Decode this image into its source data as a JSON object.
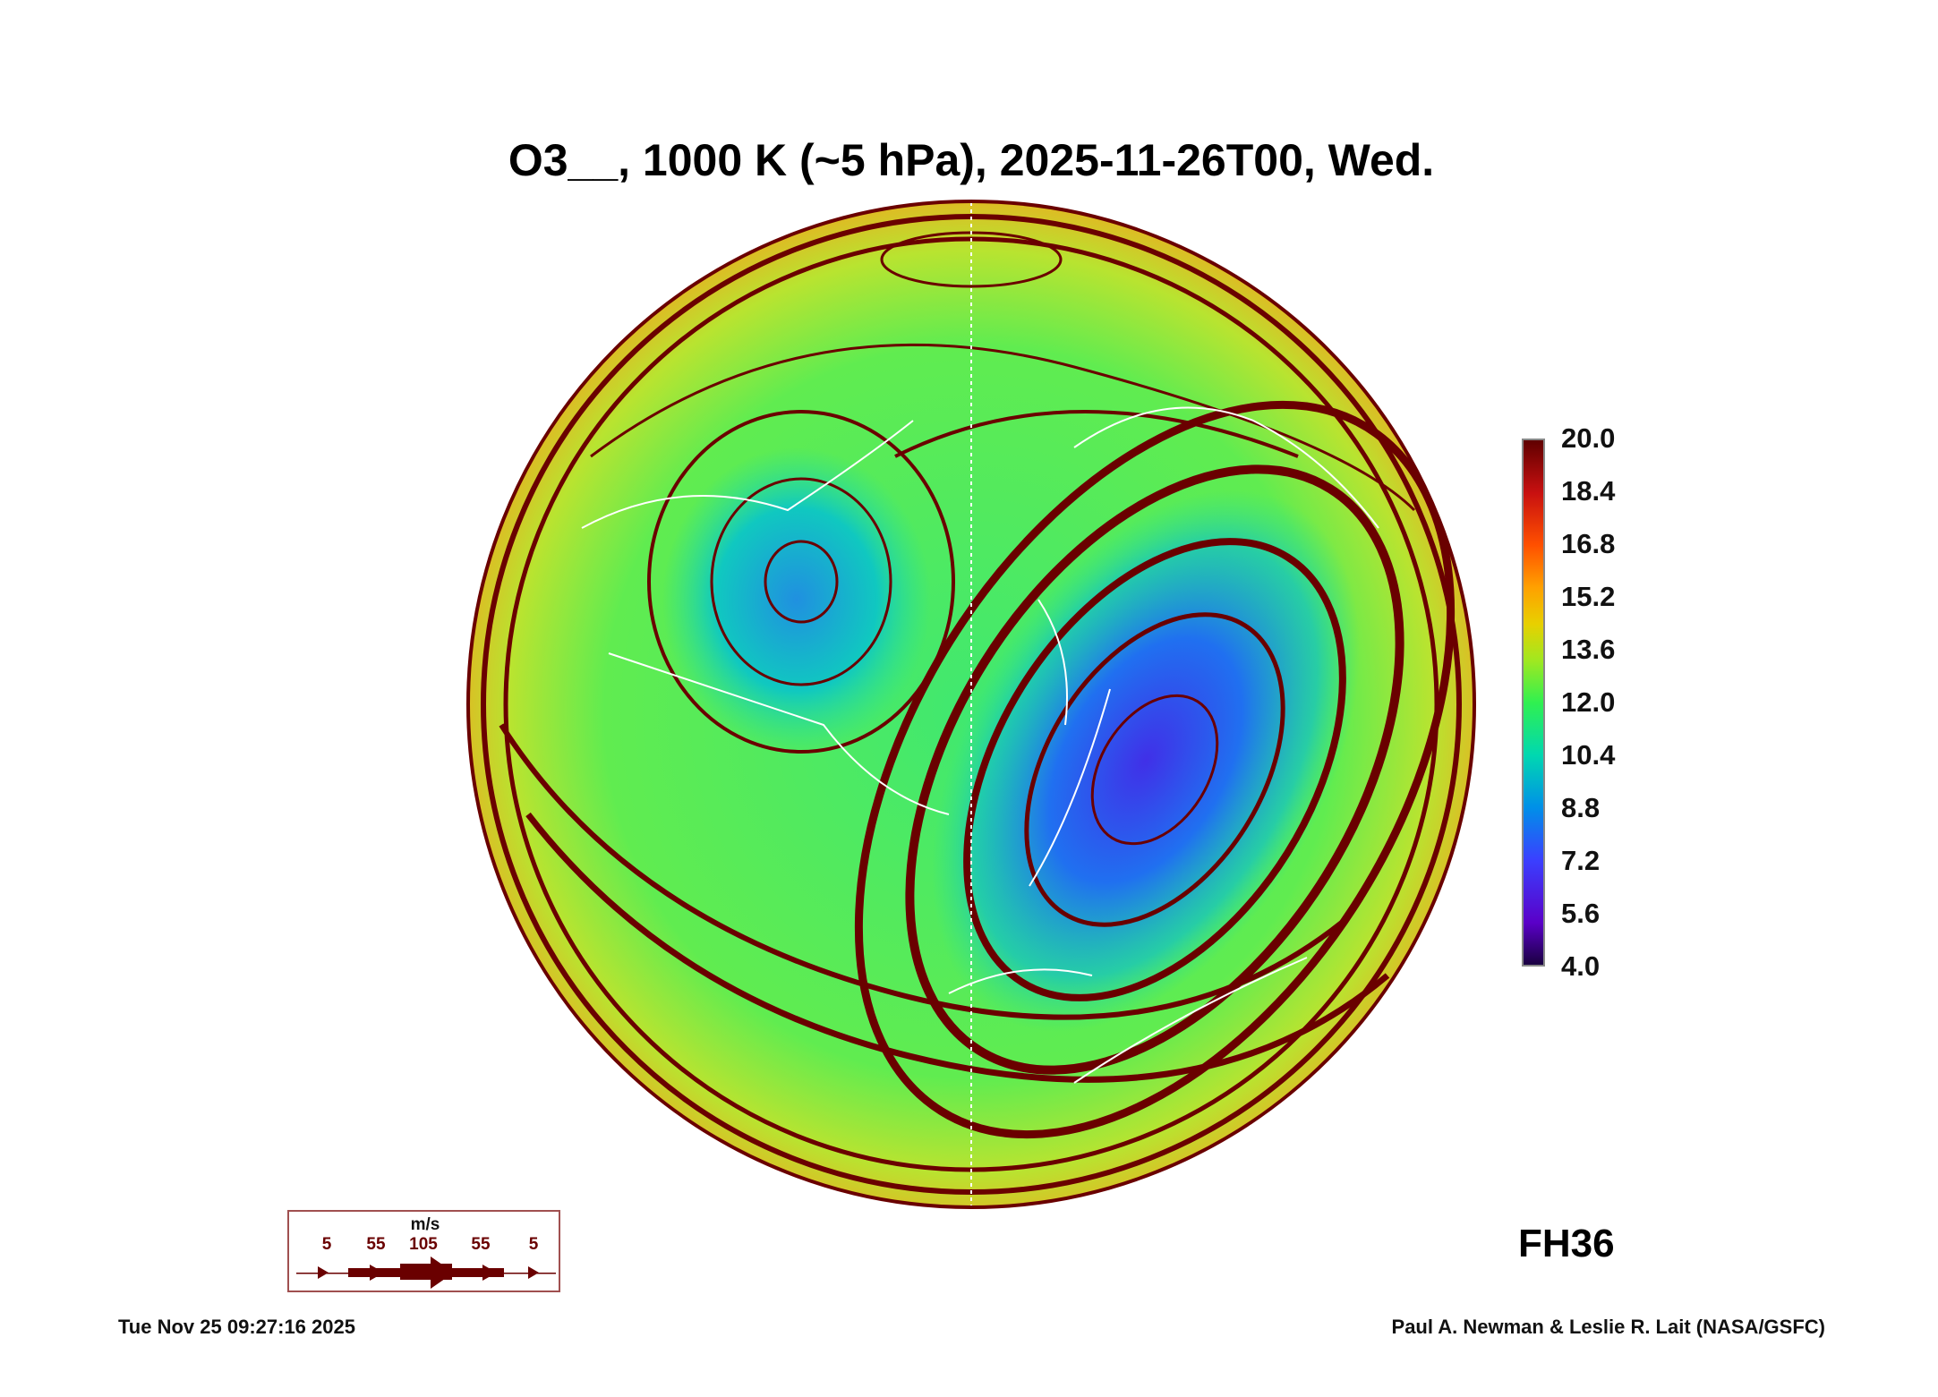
{
  "chart_data": {
    "type": "heatmap",
    "title": "O3__, 1000 K (~5 hPa), 2025-11-26T00, Wed.",
    "projection": "north polar stereographic",
    "variable": "O3",
    "colorbar": {
      "min": 4.0,
      "max": 20.0,
      "ticks": [
        "20.0",
        "18.4",
        "16.8",
        "15.2",
        "13.6",
        "12.0",
        "10.4",
        "8.8",
        "7.2",
        "5.6",
        "4.0"
      ]
    },
    "overlay": "wind streamlines",
    "wind_legend": {
      "unit": "m/s",
      "labels": [
        "5",
        "55",
        "105",
        "55",
        "5"
      ]
    },
    "forecast_hour": "FH36"
  },
  "footer": {
    "timestamp": "Tue Nov 25 09:27:16 2025",
    "credit": "Paul A. Newman & Leslie R. Lait (NASA/GSFC)"
  },
  "colors": {
    "stream": "#6a0000",
    "coast": "#ffffff"
  }
}
